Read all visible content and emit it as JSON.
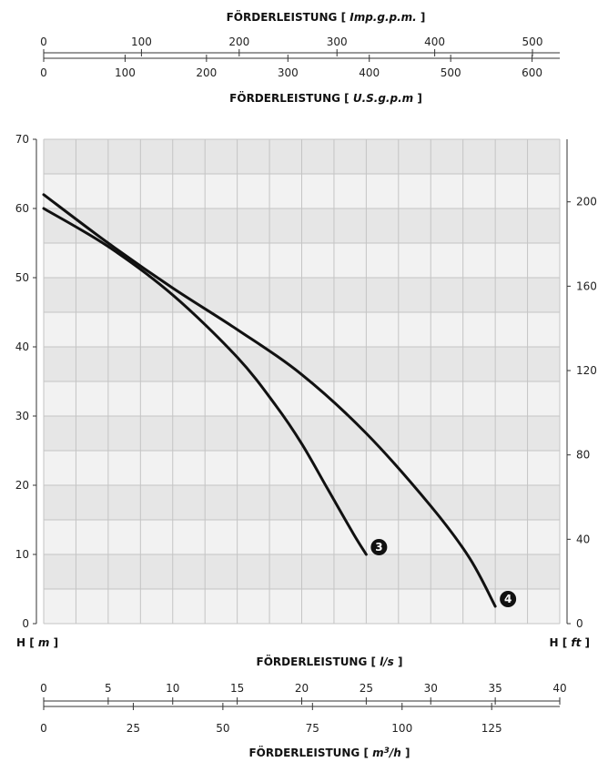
{
  "chart_data": {
    "type": "line",
    "title": "",
    "xlabel": "FÖRDERLEISTUNG",
    "xunit": "l/s",
    "ylabel": "H",
    "yunit": "m",
    "yrightlabel": "H",
    "yrightunit": "ft",
    "xlim": [
      0,
      40
    ],
    "ylim": [
      0,
      70
    ],
    "grid": true,
    "legend": "none",
    "series": [
      {
        "name": "3",
        "color": "#111111",
        "x": [
          0,
          5,
          10,
          15,
          18,
          20,
          22,
          24,
          25
        ],
        "y": [
          60,
          54.5,
          47.5,
          38.5,
          31.5,
          26,
          19.5,
          13,
          10
        ]
      },
      {
        "name": "4",
        "color": "#111111",
        "x": [
          0,
          5,
          10,
          15,
          20,
          25,
          30,
          33,
          35
        ],
        "y": [
          62,
          55,
          48.5,
          42.5,
          36,
          27.5,
          17,
          9.5,
          2.5
        ]
      }
    ],
    "yticks": [
      "0",
      "10",
      "20",
      "30",
      "40",
      "50",
      "60",
      "70"
    ],
    "yright_ticks": [
      "0",
      "40",
      "80",
      "120",
      "160",
      "200"
    ],
    "x_ls_ticks": [
      "0",
      "5",
      "10",
      "15",
      "20",
      "25",
      "30",
      "35",
      "40"
    ],
    "x_m3h_label": "FÖRDERLEISTUNG",
    "x_m3h_unit": "m3/h",
    "x_m3h_unit_base": "m",
    "x_m3h_unit_exp": "3",
    "x_m3h_unit_tail": "/h",
    "x_m3h_ticks": [
      "0",
      "25",
      "50",
      "75",
      "100",
      "125"
    ],
    "x_imp_label": "FÖRDERLEISTUNG",
    "x_imp_unit": "Imp.g.p.m.",
    "x_imp_ticks": [
      "0",
      "100",
      "200",
      "300",
      "400",
      "500"
    ],
    "x_us_label": "FÖRDERLEISTUNG",
    "x_us_unit": "U.S.g.p.m",
    "x_us_ticks": [
      "0",
      "100",
      "200",
      "300",
      "400",
      "500",
      "600"
    ]
  }
}
